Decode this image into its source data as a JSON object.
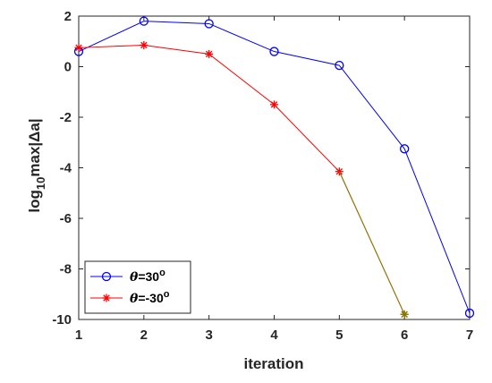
{
  "chart_data": {
    "type": "line",
    "xlabel": "iteration",
    "ylabel": {
      "prefix": "log",
      "subscript": "10",
      "suffix": "max|Δa|"
    },
    "xlim": [
      1,
      7
    ],
    "ylim": [
      -10,
      2
    ],
    "xticks": [
      1,
      2,
      3,
      4,
      5,
      6,
      7
    ],
    "yticks": [
      -10,
      -8,
      -6,
      -4,
      -2,
      0,
      2
    ],
    "grid": false,
    "legend_position": "bottom-left",
    "series": [
      {
        "name": "θ=30°",
        "legend": {
          "symbol": "θ",
          "rest": "=30",
          "sup": "o"
        },
        "color": "#0000ff",
        "marker": "circle",
        "x": [
          1,
          2,
          3,
          4,
          5,
          6,
          7
        ],
        "y": [
          0.6,
          1.8,
          1.7,
          0.6,
          0.05,
          -3.25,
          -9.75
        ]
      },
      {
        "name": "θ=-30°",
        "legend": {
          "symbol": "θ",
          "rest": "=-30",
          "sup": "o"
        },
        "color": "#ff0000",
        "marker": "star",
        "x": [
          1,
          2,
          3,
          4,
          5,
          6
        ],
        "y": [
          0.75,
          0.85,
          0.5,
          -1.5,
          -4.15,
          -9.8
        ]
      }
    ],
    "extra_segments": [
      {
        "from": [
          5,
          -4.15
        ],
        "to": [
          6,
          -9.8
        ],
        "color": "#808000"
      }
    ]
  }
}
